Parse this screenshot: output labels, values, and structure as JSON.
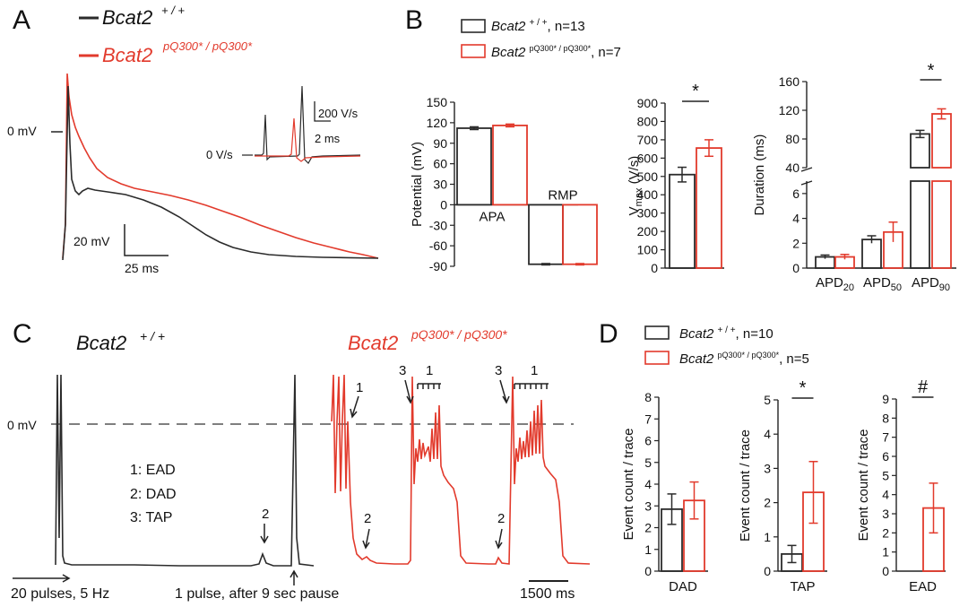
{
  "colors": {
    "wt": "#2b2b2b",
    "mut": "#e23a2c",
    "axis": "#222222",
    "dash": "#333333"
  },
  "panels": {
    "A": "A",
    "B": "B",
    "C": "C",
    "D": "D"
  },
  "legend_A": {
    "wt_gene": "Bcat2",
    "wt_sup": "+ / +",
    "mut_gene": "Bcat2",
    "mut_sup": "pQ300* / pQ300*"
  },
  "panel_A": {
    "zero_label": "0 mV",
    "scale_v": "20 mV",
    "scale_t": "25 ms",
    "inset_zero": "0 V/s",
    "inset_scale_v": "200 V/s",
    "inset_scale_t": "2 ms"
  },
  "legend_B": {
    "wt": {
      "gene": "Bcat2",
      "sup": "+ / +",
      "n": ", n=13"
    },
    "mut": {
      "gene": "Bcat2",
      "sup": "pQ300* / pQ300*",
      "n": ", n=7"
    }
  },
  "legend_D": {
    "wt": {
      "gene": "Bcat2",
      "sup": "+ / +",
      "n": ", n=10"
    },
    "mut": {
      "gene": "Bcat2",
      "sup": "pQ300* / pQ300*",
      "n": ", n=5"
    }
  },
  "panel_C": {
    "wt_gene": "Bcat2",
    "wt_sup": "+ / +",
    "mut_gene": "Bcat2",
    "mut_sup": "pQ300* / pQ300*",
    "zero_label": "0 mV",
    "key": [
      "1: EAD",
      "2: DAD",
      "3: TAP"
    ],
    "pulses_label": "20 pulses, 5 Hz",
    "pause_label": "1 pulse, after 9 sec pause",
    "scale": "1500 ms",
    "marker_1": "1",
    "marker_2": "2",
    "marker_3": "3"
  },
  "chart_data": [
    {
      "id": "potential",
      "type": "bar",
      "ylabel": "Potential (mV)",
      "ylim": [
        -90,
        150
      ],
      "ticks": [
        -90,
        -60,
        -30,
        0,
        30,
        60,
        90,
        120,
        150
      ],
      "categories": [
        "APA",
        "RMP"
      ],
      "series": [
        {
          "name": "Bcat2 +/+",
          "values": [
            112,
            -87
          ],
          "sem": [
            2,
            1
          ]
        },
        {
          "name": "Bcat2 pQ300*/pQ300*",
          "values": [
            116,
            -87
          ],
          "sem": [
            2,
            1
          ]
        }
      ]
    },
    {
      "id": "vmax",
      "type": "bar",
      "ylabel_main": "V",
      "ylabel_sub": "max",
      "ylabel_unit": " (V/s)",
      "ylim": [
        0,
        900
      ],
      "ticks": [
        0,
        100,
        200,
        300,
        400,
        500,
        600,
        700,
        800,
        900
      ],
      "categories": [
        ""
      ],
      "series": [
        {
          "name": "Bcat2 +/+",
          "values": [
            510
          ],
          "sem": [
            40
          ]
        },
        {
          "name": "Bcat2 pQ300*/pQ300*",
          "values": [
            655
          ],
          "sem": [
            45
          ]
        }
      ],
      "annotation": "*"
    },
    {
      "id": "duration",
      "type": "bar",
      "ylabel": "Duration (ms)",
      "ticks_low": [
        0,
        2,
        4,
        6
      ],
      "ticks_high": [
        40,
        80,
        120,
        160
      ],
      "categories": [
        "APD20",
        "APD50",
        "APD90"
      ],
      "cat_main": [
        "APD",
        "APD",
        "APD"
      ],
      "cat_sub": [
        "20",
        "50",
        "90"
      ],
      "series": [
        {
          "name": "Bcat2 +/+",
          "values": [
            0.9,
            2.3,
            87
          ],
          "sem": [
            0.15,
            0.3,
            5
          ]
        },
        {
          "name": "Bcat2 pQ300*/pQ300*",
          "values": [
            0.9,
            2.9,
            115
          ],
          "sem": [
            0.2,
            0.8,
            7
          ]
        }
      ],
      "annotation": "*"
    },
    {
      "id": "dad",
      "type": "bar",
      "ylabel": "Event count / trace",
      "ylim": [
        0,
        8
      ],
      "ticks": [
        0,
        1,
        2,
        3,
        4,
        5,
        6,
        7,
        8
      ],
      "categories": [
        "DAD"
      ],
      "series": [
        {
          "name": "Bcat2 +/+",
          "values": [
            2.85
          ],
          "sem": [
            0.7
          ]
        },
        {
          "name": "Bcat2 pQ300*/pQ300*",
          "values": [
            3.25
          ],
          "sem": [
            0.85
          ]
        }
      ]
    },
    {
      "id": "tap",
      "type": "bar",
      "ylabel": "Event count / trace",
      "ylim": [
        0,
        5
      ],
      "ticks": [
        0,
        1,
        2,
        3,
        4,
        5
      ],
      "categories": [
        "TAP"
      ],
      "series": [
        {
          "name": "Bcat2 +/+",
          "values": [
            0.5
          ],
          "sem": [
            0.25
          ]
        },
        {
          "name": "Bcat2 pQ300*/pQ300*",
          "values": [
            2.3
          ],
          "sem": [
            0.9
          ]
        }
      ],
      "annotation": "*"
    },
    {
      "id": "ead",
      "type": "bar",
      "ylabel": "Event count / trace",
      "ylim": [
        0,
        9
      ],
      "ticks": [
        0,
        1,
        2,
        3,
        4,
        5,
        6,
        7,
        8,
        9
      ],
      "categories": [
        "EAD"
      ],
      "series": [
        {
          "name": "Bcat2 +/+",
          "values": [
            0
          ],
          "sem": [
            0
          ]
        },
        {
          "name": "Bcat2 pQ300*/pQ300*",
          "values": [
            3.3
          ],
          "sem": [
            1.3
          ]
        }
      ],
      "annotation": "#"
    }
  ]
}
